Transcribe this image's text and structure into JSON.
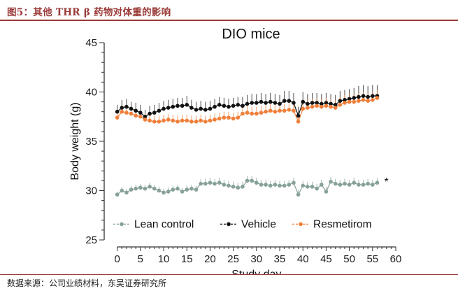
{
  "figure": {
    "title": "图5：其他 THR β 药物对体重的影响",
    "source": "数据来源：公司业绩材料，东吴证券研究所"
  },
  "chart_data": {
    "type": "line",
    "title": "DIO mice",
    "xlabel": "Study day",
    "ylabel": "Body weight (g)",
    "xlim": [
      -1,
      60
    ],
    "ylim": [
      25,
      45
    ],
    "xticks": [
      0,
      5,
      10,
      15,
      20,
      25,
      30,
      35,
      40,
      45,
      50,
      55,
      60
    ],
    "yticks": [
      25,
      30,
      35,
      40,
      45
    ],
    "legend_position": "bottom-left",
    "annotation": "*",
    "series": [
      {
        "name": "Vehicle",
        "color": "#111111",
        "error_bars": true,
        "x": [
          0,
          1,
          2,
          3,
          4,
          5,
          6,
          7,
          8,
          9,
          10,
          11,
          12,
          13,
          14,
          15,
          16,
          17,
          18,
          19,
          20,
          21,
          22,
          23,
          24,
          25,
          26,
          27,
          28,
          29,
          30,
          31,
          32,
          33,
          34,
          35,
          36,
          37,
          38,
          39,
          40,
          41,
          42,
          43,
          44,
          45,
          46,
          47,
          48,
          49,
          50,
          51,
          52,
          53,
          54,
          55,
          56
        ],
        "values": [
          38.0,
          38.4,
          38.5,
          38.3,
          38.1,
          37.9,
          37.5,
          37.8,
          37.9,
          38.1,
          38.3,
          38.4,
          38.5,
          38.6,
          38.6,
          38.7,
          38.4,
          38.2,
          38.3,
          38.2,
          38.3,
          38.5,
          38.7,
          38.6,
          38.5,
          38.6,
          38.7,
          38.6,
          38.8,
          38.9,
          38.9,
          39.0,
          38.9,
          39.0,
          38.9,
          38.8,
          39.1,
          39.1,
          38.9,
          37.6,
          39.0,
          38.8,
          38.9,
          38.9,
          38.8,
          38.9,
          38.8,
          38.7,
          39.1,
          39.2,
          39.3,
          39.4,
          39.5,
          39.6,
          39.5,
          39.6,
          39.6
        ],
        "errors": [
          0.7,
          0.8,
          0.8,
          0.7,
          0.8,
          0.8,
          0.7,
          0.8,
          0.8,
          0.8,
          0.8,
          0.8,
          0.8,
          0.8,
          0.8,
          0.9,
          0.8,
          0.8,
          0.8,
          0.8,
          0.8,
          0.8,
          0.8,
          0.8,
          0.8,
          0.8,
          0.8,
          0.9,
          0.9,
          0.9,
          0.9,
          0.9,
          0.9,
          0.9,
          0.9,
          0.9,
          1.0,
          1.0,
          1.0,
          0.9,
          1.0,
          1.0,
          1.0,
          1.0,
          1.0,
          1.0,
          1.0,
          1.0,
          1.0,
          1.0,
          1.0,
          1.0,
          1.1,
          1.1,
          1.1,
          1.1,
          1.1
        ]
      },
      {
        "name": "Resmetirom",
        "color": "#f07f3a",
        "error_bars": true,
        "x": [
          0,
          1,
          2,
          3,
          4,
          5,
          6,
          7,
          8,
          9,
          10,
          11,
          12,
          13,
          14,
          15,
          16,
          17,
          18,
          19,
          20,
          21,
          22,
          23,
          24,
          25,
          26,
          27,
          28,
          29,
          30,
          31,
          32,
          33,
          34,
          35,
          36,
          37,
          38,
          39,
          40,
          41,
          42,
          43,
          44,
          45,
          46,
          47,
          48,
          49,
          50,
          51,
          52,
          53,
          54,
          55,
          56
        ],
        "values": [
          37.4,
          38.0,
          37.9,
          37.8,
          37.6,
          37.5,
          37.2,
          37.1,
          37.0,
          37.0,
          37.1,
          37.2,
          37.1,
          37.0,
          37.1,
          37.1,
          37.0,
          37.0,
          37.1,
          37.0,
          37.1,
          37.2,
          37.3,
          37.4,
          37.4,
          37.3,
          37.4,
          37.8,
          37.9,
          37.8,
          37.8,
          37.9,
          38.0,
          38.1,
          38.0,
          38.1,
          38.1,
          38.2,
          38.1,
          37.0,
          38.3,
          38.4,
          38.5,
          38.6,
          38.5,
          38.6,
          38.5,
          38.4,
          38.7,
          38.9,
          39.0,
          39.0,
          39.1,
          39.2,
          39.1,
          39.2,
          39.4
        ],
        "errors": [
          0.6,
          0.6,
          0.6,
          0.6,
          0.6,
          0.6,
          0.6,
          0.6,
          0.6,
          0.6,
          0.6,
          0.6,
          0.6,
          0.6,
          0.6,
          0.6,
          0.6,
          0.6,
          0.6,
          0.6,
          0.6,
          0.6,
          0.6,
          0.6,
          0.6,
          0.6,
          0.6,
          0.7,
          0.7,
          0.7,
          0.7,
          0.7,
          0.7,
          0.7,
          0.7,
          0.7,
          0.7,
          0.7,
          0.7,
          0.7,
          0.8,
          0.8,
          0.8,
          0.8,
          0.8,
          0.8,
          0.8,
          0.8,
          0.8,
          0.8,
          0.8,
          0.8,
          0.8,
          0.8,
          0.8,
          0.8,
          0.8
        ]
      },
      {
        "name": "Lean control",
        "color": "#86a19a",
        "error_bars": true,
        "x": [
          0,
          1,
          2,
          3,
          4,
          5,
          6,
          7,
          8,
          9,
          10,
          11,
          12,
          13,
          14,
          15,
          16,
          17,
          18,
          19,
          20,
          21,
          22,
          23,
          24,
          25,
          26,
          27,
          28,
          29,
          30,
          31,
          32,
          33,
          34,
          35,
          36,
          37,
          38,
          39,
          40,
          41,
          42,
          43,
          44,
          45,
          46,
          47,
          48,
          49,
          50,
          51,
          52,
          53,
          54,
          55,
          56
        ],
        "values": [
          29.6,
          30.0,
          29.8,
          30.1,
          30.2,
          30.3,
          30.2,
          30.4,
          30.2,
          30.0,
          29.8,
          29.9,
          30.1,
          30.2,
          29.9,
          30.1,
          30.2,
          30.1,
          30.7,
          30.7,
          30.8,
          30.7,
          30.8,
          30.6,
          30.5,
          30.4,
          30.3,
          30.4,
          31.0,
          31.0,
          30.8,
          30.6,
          30.6,
          30.5,
          30.6,
          30.5,
          30.5,
          30.6,
          30.8,
          29.6,
          30.5,
          30.4,
          30.4,
          30.2,
          30.6,
          29.9,
          30.9,
          30.7,
          30.6,
          30.7,
          30.6,
          30.8,
          30.6,
          30.6,
          30.7,
          30.6,
          30.8
        ],
        "errors": [
          0.3,
          0.4,
          0.4,
          0.4,
          0.4,
          0.4,
          0.4,
          0.4,
          0.4,
          0.4,
          0.4,
          0.4,
          0.4,
          0.4,
          0.4,
          0.4,
          0.4,
          0.4,
          0.5,
          0.5,
          0.5,
          0.5,
          0.5,
          0.5,
          0.5,
          0.5,
          0.5,
          0.5,
          0.5,
          0.5,
          0.5,
          0.5,
          0.5,
          0.5,
          0.5,
          0.5,
          0.5,
          0.5,
          0.5,
          0.5,
          0.5,
          0.5,
          0.5,
          0.5,
          0.5,
          0.5,
          0.5,
          0.5,
          0.5,
          0.5,
          0.5,
          0.5,
          0.5,
          0.5,
          0.5,
          0.5,
          0.5
        ]
      }
    ],
    "legend_order": [
      "Lean control",
      "Vehicle",
      "Resmetirom"
    ]
  }
}
